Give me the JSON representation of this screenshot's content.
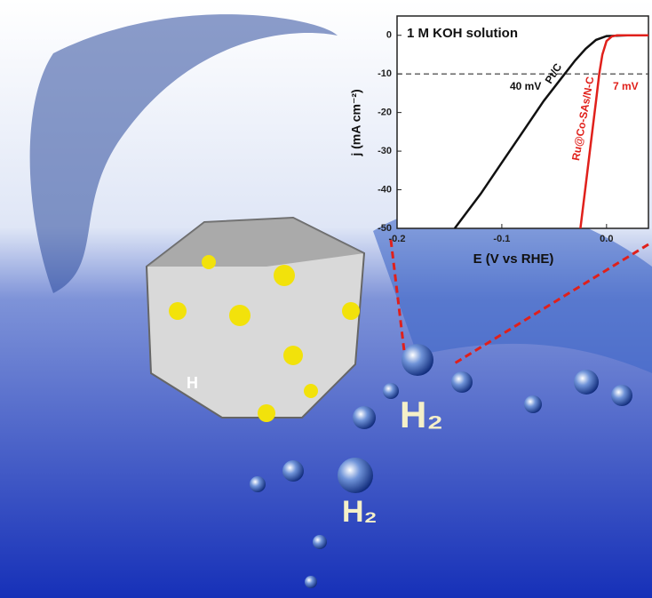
{
  "chart_data": {
    "type": "line",
    "x_label": "E (V vs RHE)",
    "y_label": "j (mA cm⁻²)",
    "annotations": {
      "solution": "1 M KOH solution",
      "pt_overpotential": "40 mV",
      "ru_overpotential": "7 mV"
    },
    "xlim": [
      -0.2,
      0.04
    ],
    "ylim": [
      -50,
      5
    ],
    "xticks": [
      -0.2,
      -0.1,
      {
        "value": 0,
        "label": "0.0"
      }
    ],
    "yticks": [
      0,
      -10,
      -20,
      -30,
      -40,
      -50
    ],
    "hline": -10,
    "series": [
      {
        "name": "Pt/C",
        "color": "#111111",
        "x": [
          -0.145,
          -0.12,
          -0.1,
          -0.08,
          -0.06,
          -0.04,
          -0.03,
          -0.02,
          -0.01,
          0.0,
          0.02,
          0.04
        ],
        "values": [
          -50,
          -41,
          -33,
          -25,
          -17,
          -10,
          -6.5,
          -3.5,
          -1.2,
          -0.2,
          0,
          0
        ]
      },
      {
        "name": "Ru@Co-SAs/N-C",
        "color": "#e0201b",
        "x": [
          -0.025,
          -0.02,
          -0.015,
          -0.01,
          -0.007,
          -0.004,
          0.0,
          0.005,
          0.01,
          0.02,
          0.04
        ],
        "values": [
          -50,
          -39,
          -28,
          -17,
          -10,
          -5,
          -1.5,
          -0.3,
          0,
          0,
          0
        ]
      }
    ]
  },
  "illustration_labels": [
    "H₂",
    "H₂",
    "H"
  ]
}
